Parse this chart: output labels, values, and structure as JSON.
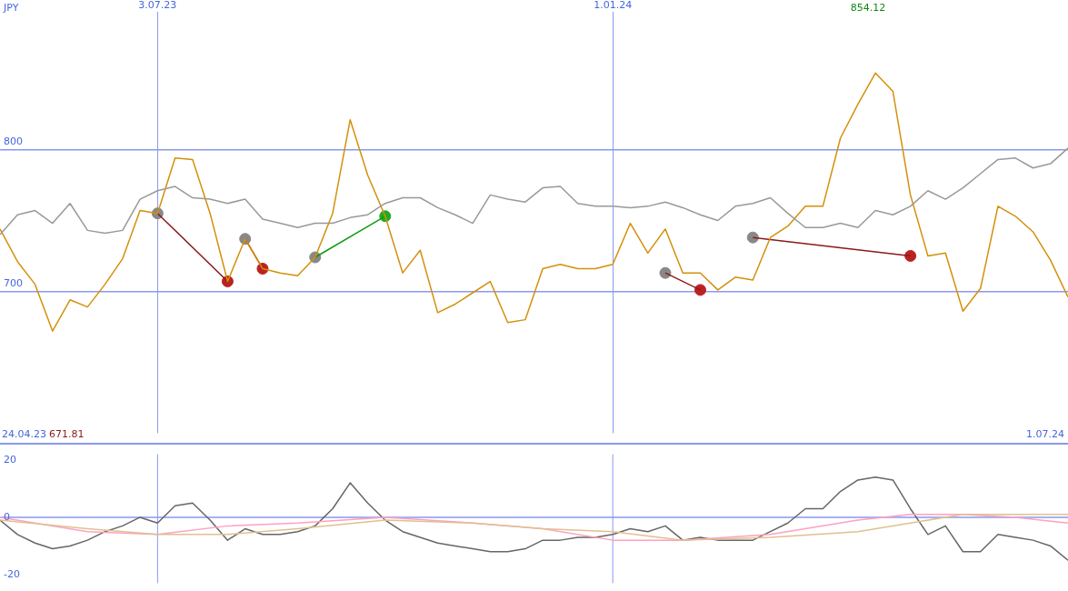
{
  "chart_data": [
    {
      "type": "line",
      "xlim": [
        "2023-05-01",
        "2024-07-01"
      ],
      "xticks": [
        {
          "value": "2023-07-03",
          "label": "3.07.23"
        },
        {
          "value": "2024-01-01",
          "label": "1.01.24"
        }
      ],
      "ylim": [
        600,
        897
      ],
      "yticks": [
        700,
        800
      ],
      "grid": true,
      "marker": "none",
      "annotations": [
        "JPY",
        "24.04.23",
        "671.81",
        "1.07.24",
        "854.12"
      ],
      "x": [
        "2023-05-01",
        "2023-05-08",
        "2023-05-15",
        "2023-05-22",
        "2023-05-29",
        "2023-06-05",
        "2023-06-12",
        "2023-06-19",
        "2023-06-26",
        "2023-07-03",
        "2023-07-10",
        "2023-07-17",
        "2023-07-24",
        "2023-07-31",
        "2023-08-07",
        "2023-08-14",
        "2023-08-21",
        "2023-08-28",
        "2023-09-04",
        "2023-09-11",
        "2023-09-18",
        "2023-09-25",
        "2023-10-02",
        "2023-10-09",
        "2023-10-16",
        "2023-10-23",
        "2023-10-30",
        "2023-11-06",
        "2023-11-13",
        "2023-11-20",
        "2023-11-27",
        "2023-12-04",
        "2023-12-11",
        "2023-12-18",
        "2023-12-25",
        "2024-01-01",
        "2024-01-08",
        "2024-01-15",
        "2024-01-22",
        "2024-01-29",
        "2024-02-05",
        "2024-02-12",
        "2024-02-19",
        "2024-02-26",
        "2024-03-04",
        "2024-03-11",
        "2024-03-18",
        "2024-03-25",
        "2024-04-01",
        "2024-04-08",
        "2024-04-15",
        "2024-04-22",
        "2024-04-29",
        "2024-05-06",
        "2024-05-13",
        "2024-05-20",
        "2024-05-27",
        "2024-06-03",
        "2024-06-10",
        "2024-06-17",
        "2024-06-24",
        "2024-07-01"
      ],
      "series": [
        {
          "color": "#999999",
          "values": [
            740,
            754,
            757,
            748,
            762,
            743,
            741,
            743,
            765,
            771,
            774,
            766,
            765,
            762,
            765,
            751,
            748,
            745,
            748,
            748,
            752,
            754,
            762,
            766,
            766,
            759,
            754,
            748,
            768,
            765,
            763,
            773,
            774,
            762,
            760,
            760,
            759,
            760,
            763,
            759,
            754,
            750,
            760,
            762,
            766,
            755,
            745,
            745,
            748,
            745,
            757,
            754,
            760,
            771,
            765,
            773,
            783,
            793,
            794,
            787,
            790,
            801
          ]
        },
        {
          "color": "#d4900a",
          "values": [
            744,
            721,
            705,
            672,
            694,
            689,
            705,
            723,
            757,
            755,
            794,
            793,
            755,
            707,
            737,
            716,
            713,
            711,
            724,
            755,
            821,
            782,
            753,
            713,
            729,
            685,
            691,
            699,
            707,
            678,
            680,
            716,
            719,
            716,
            716,
            719,
            748,
            727,
            744,
            713,
            713,
            701,
            710,
            708,
            738,
            746,
            760,
            760,
            808,
            832,
            854,
            841,
            768,
            725,
            727,
            686,
            702,
            760,
            753,
            742,
            722,
            696
          ]
        },
        {
          "type": "line",
          "color": "#8b1a1a",
          "x": [
            "2023-07-03",
            "2023-07-31",
            "2023-08-01",
            "2023-08-07",
            "2023-08-14",
            "2023-08-15",
            "2024-01-22",
            "2024-02-05",
            "2024-02-06",
            "2024-02-26",
            "2024-04-29"
          ],
          "values": [
            755,
            707,
            null,
            737,
            716,
            null,
            713,
            701,
            null,
            738,
            725
          ]
        },
        {
          "type": "line",
          "color": "#119911",
          "x": [
            "2023-09-04",
            "2023-10-02"
          ],
          "values": [
            724,
            753
          ]
        },
        {
          "type": "scatter",
          "marker": "circle",
          "color": "#888888",
          "x": [
            "2023-07-03",
            "2023-08-07",
            "2023-09-04",
            "2024-01-22",
            "2024-02-26"
          ],
          "values": [
            755,
            737,
            724,
            713,
            738
          ]
        },
        {
          "type": "scatter",
          "marker": "circle",
          "color": "#bb2222",
          "x": [
            "2023-07-31",
            "2023-08-14",
            "2024-02-05",
            "2024-04-29"
          ],
          "values": [
            707,
            716,
            701,
            725
          ]
        },
        {
          "type": "scatter",
          "marker": "circle",
          "color": "#22aa22",
          "x": [
            "2023-10-02"
          ],
          "values": [
            753
          ]
        }
      ]
    },
    {
      "type": "line",
      "xlim": [
        "2023-05-01",
        "2024-07-01"
      ],
      "ylim": [
        -23,
        22
      ],
      "yticks": [
        -20,
        0,
        20
      ],
      "marker": "none",
      "tick_labels": "y",
      "ref_lines": [
        {
          "axis": "y",
          "value": 0
        },
        {
          "axis": "x",
          "value": "2023-07-03"
        },
        {
          "axis": "x",
          "value": "2024-01-01"
        }
      ],
      "x": [
        "2023-05-01",
        "2023-05-08",
        "2023-05-15",
        "2023-05-22",
        "2023-05-29",
        "2023-06-05",
        "2023-06-12",
        "2023-06-19",
        "2023-06-26",
        "2023-07-03",
        "2023-07-10",
        "2023-07-17",
        "2023-07-24",
        "2023-07-31",
        "2023-08-07",
        "2023-08-14",
        "2023-08-21",
        "2023-08-28",
        "2023-09-04",
        "2023-09-11",
        "2023-09-18",
        "2023-09-25",
        "2023-10-02",
        "2023-10-09",
        "2023-10-16",
        "2023-10-23",
        "2023-10-30",
        "2023-11-06",
        "2023-11-13",
        "2023-11-20",
        "2023-11-27",
        "2023-12-04",
        "2023-12-11",
        "2023-12-18",
        "2023-12-25",
        "2024-01-01",
        "2024-01-08",
        "2024-01-15",
        "2024-01-22",
        "2024-01-29",
        "2024-02-05",
        "2024-02-12",
        "2024-02-19",
        "2024-02-26",
        "2024-03-04",
        "2024-03-11",
        "2024-03-18",
        "2024-03-25",
        "2024-04-01",
        "2024-04-08",
        "2024-04-15",
        "2024-04-22",
        "2024-04-29",
        "2024-05-06",
        "2024-05-13",
        "2024-05-20",
        "2024-05-27",
        "2024-06-03",
        "2024-06-10",
        "2024-06-17",
        "2024-06-24",
        "2024-07-01"
      ],
      "series": [
        {
          "color": "#e0c090",
          "x": [
            "2023-05-01",
            "2023-06-05",
            "2023-07-03",
            "2023-07-31",
            "2023-08-28",
            "2023-10-02",
            "2023-11-06",
            "2023-12-04",
            "2024-01-01",
            "2024-01-29",
            "2024-03-04",
            "2024-04-08",
            "2024-04-29",
            "2024-05-20",
            "2024-06-10",
            "2024-07-01"
          ],
          "values": [
            -1,
            -4,
            -6,
            -6,
            -4,
            -1,
            -2,
            -4,
            -5,
            -8,
            -7,
            -5,
            -2,
            1,
            1,
            1
          ]
        },
        {
          "color": "#ffa0c0",
          "x": [
            "2023-05-01",
            "2023-06-05",
            "2023-07-03",
            "2023-07-31",
            "2023-08-28",
            "2023-10-02",
            "2023-11-06",
            "2023-12-04",
            "2024-01-01",
            "2024-01-29",
            "2024-03-04",
            "2024-04-08",
            "2024-04-29",
            "2024-05-20",
            "2024-06-10",
            "2024-07-01"
          ],
          "values": [
            0,
            -5,
            -6,
            -3,
            -2,
            0,
            -2,
            -4,
            -8,
            -8,
            -6,
            -1,
            1,
            1,
            0,
            -2
          ]
        },
        {
          "color": "#666666",
          "values": [
            -1,
            -6,
            -9,
            -11,
            -10,
            -8,
            -5,
            -3,
            0,
            -2,
            4,
            5,
            -1,
            -8,
            -4,
            -6,
            -6,
            -5,
            -3,
            3,
            12,
            5,
            -1,
            -5,
            -7,
            -9,
            -10,
            -11,
            -12,
            -12,
            -11,
            -8,
            -8,
            -7,
            -7,
            -6,
            -4,
            -5,
            -3,
            -8,
            -7,
            -8,
            -8,
            -8,
            -5,
            -2,
            3,
            3,
            9,
            13,
            14,
            13,
            3,
            -6,
            -3,
            -12,
            -12,
            -6,
            -7,
            -8,
            -10,
            -15
          ]
        }
      ]
    }
  ]
}
